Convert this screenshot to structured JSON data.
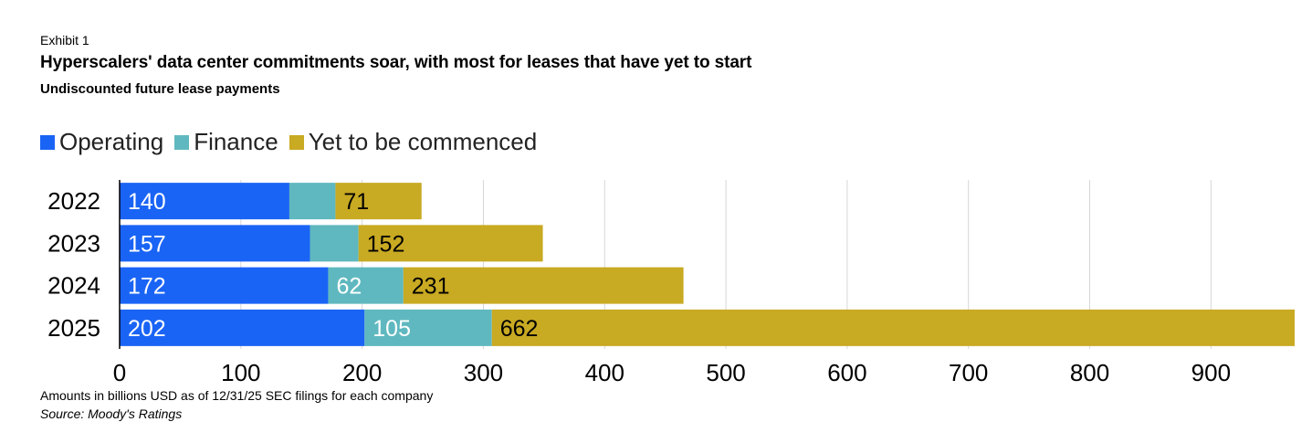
{
  "header": {
    "exhibit": "Exhibit 1",
    "title": "Hyperscalers' data center commitments soar, with most for leases that have yet to start",
    "subtitle": "Undiscounted future lease payments"
  },
  "legend": [
    {
      "label": "Operating",
      "color": "#1a64f5"
    },
    {
      "label": "Finance",
      "color": "#5fb8bf"
    },
    {
      "label": "Yet to be commenced",
      "color": "#c8aa23"
    }
  ],
  "footer": {
    "note": "Amounts in billions USD as of 12/31/25 SEC filings for each company",
    "source": "Source: Moody's Ratings"
  },
  "chart_data": {
    "type": "bar",
    "orientation": "horizontal",
    "stacked": true,
    "categories": [
      "2022",
      "2023",
      "2024",
      "2025"
    ],
    "series": [
      {
        "name": "Operating",
        "color": "#1a64f5",
        "values": [
          140,
          157,
          172,
          202
        ],
        "labels": [
          "140",
          "157",
          "172",
          "202"
        ],
        "label_color": "#ffffff"
      },
      {
        "name": "Finance",
        "color": "#5fb8bf",
        "values": [
          38,
          40,
          62,
          105
        ],
        "labels": [
          "",
          "",
          "62",
          "105"
        ],
        "label_color": "#ffffff"
      },
      {
        "name": "Yet to be commenced",
        "color": "#c8aa23",
        "values": [
          71,
          152,
          231,
          662
        ],
        "labels": [
          "71",
          "152",
          "231",
          "662"
        ],
        "label_color": "#000000"
      }
    ],
    "xlim": [
      0,
      969
    ],
    "xticks": [
      0,
      100,
      200,
      300,
      400,
      500,
      600,
      700,
      800,
      900
    ],
    "grid": "vertical",
    "legend_position": "top-left"
  }
}
